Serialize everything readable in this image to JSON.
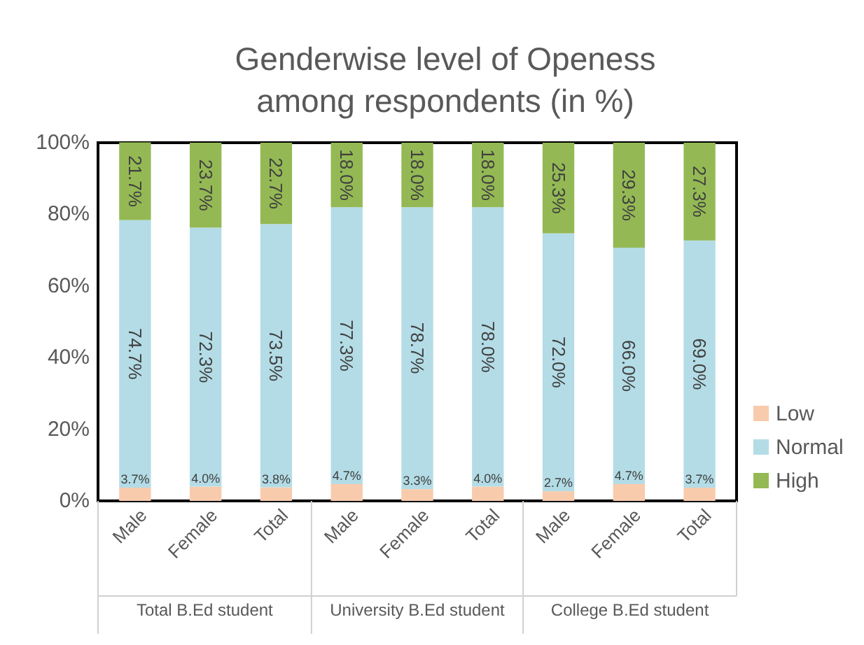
{
  "chart_data": {
    "type": "bar",
    "stacked": true,
    "title": "Genderwise level of Openess among respondents (in %)",
    "categories": [
      "Male",
      "Female",
      "Total",
      "Male",
      "Female",
      "Total",
      "Male",
      "Female",
      "Total"
    ],
    "annotations": [
      "Total B.Ed student",
      "University B.Ed student",
      "College B.Ed student"
    ],
    "series": [
      {
        "name": "Low",
        "color": "#f8cbad",
        "values": [
          3.7,
          4.0,
          3.8,
          4.7,
          3.3,
          4.0,
          2.7,
          4.7,
          3.7
        ],
        "value_labels": [
          "3.7%",
          "4.0%",
          "3.8%",
          "4.7%",
          "3.3%",
          "4.0%",
          "2.7%",
          "4.7%",
          "3.7%"
        ]
      },
      {
        "name": "Normal",
        "color": "#b4dce6",
        "values": [
          74.7,
          72.3,
          73.5,
          77.3,
          78.7,
          78.0,
          72.0,
          66.0,
          69.0
        ],
        "value_labels": [
          "74.7%",
          "72.3%",
          "73.5%",
          "77.3%",
          "78.7%",
          "78.0%",
          "72.0%",
          "66.0%",
          "69.0%"
        ]
      },
      {
        "name": "High",
        "color": "#94b954",
        "values": [
          21.7,
          23.7,
          22.7,
          18.0,
          18.0,
          18.0,
          25.3,
          29.3,
          27.3
        ],
        "value_labels": [
          "21.7%",
          "23.7%",
          "22.7%",
          "18.0%",
          "18.0%",
          "18.0%",
          "25.3%",
          "29.3%",
          "27.3%"
        ]
      }
    ],
    "ylim": [
      0,
      100
    ],
    "yticks": [
      {
        "value": 0,
        "label": "0%"
      },
      {
        "value": 20,
        "label": "20%"
      },
      {
        "value": 40,
        "label": "40%"
      },
      {
        "value": 60,
        "label": "60%"
      },
      {
        "value": 80,
        "label": "80%"
      },
      {
        "value": 100,
        "label": "100%"
      }
    ],
    "grid": false,
    "legend": "bottom right"
  }
}
